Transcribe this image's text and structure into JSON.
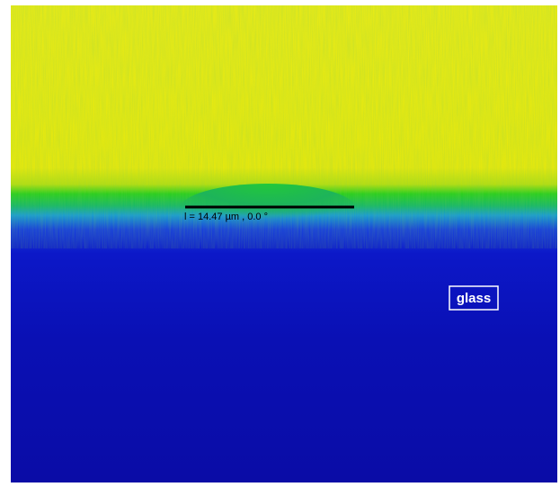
{
  "measurement": {
    "label": "l = 14.47 µm ,  0.0 °"
  },
  "annotation": {
    "label": "glass"
  }
}
